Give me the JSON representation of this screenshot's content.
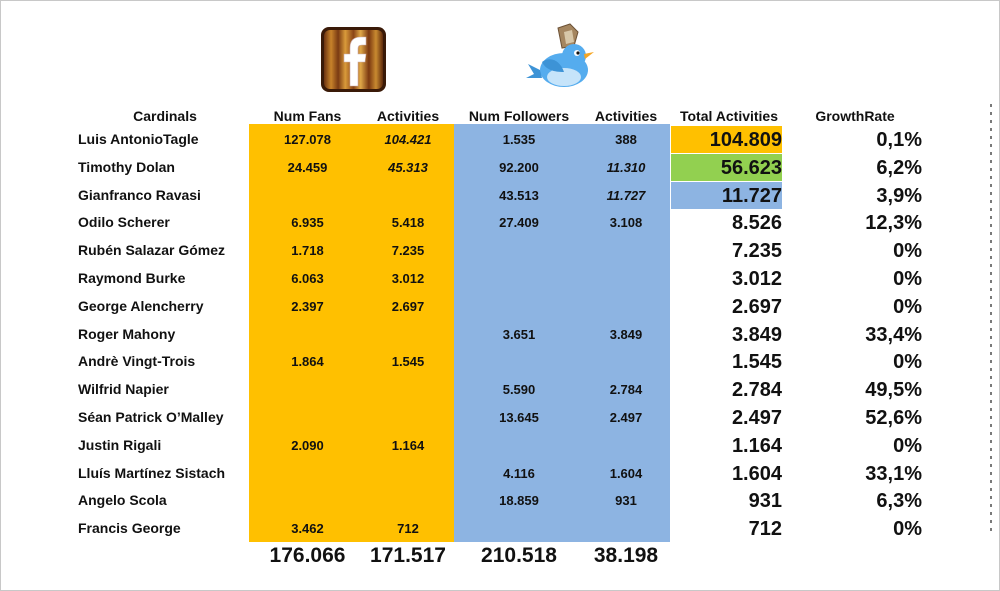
{
  "headers": {
    "cardinals": "Cardinals",
    "num_fans": "Num Fans",
    "fb_activities": "Activities",
    "num_followers": "Num Followers",
    "tw_activities": "Activities",
    "total": "Total Activities",
    "growth": "GrowthRate"
  },
  "colors": {
    "facebook_column": "#ffc000",
    "twitter_column": "#8db4e2",
    "top1": "#ffc000",
    "top2": "#92d050",
    "top3": "#8db4e2"
  },
  "icons": {
    "facebook": "facebook-logo-icon",
    "twitter": "twitter-bird-icon"
  },
  "rows": [
    {
      "name": "Luis AntonioTagle",
      "fans": "127.078",
      "fb_act": "104.421",
      "followers": "1.535",
      "tw_act": "388",
      "total": "104.809",
      "growth": "0,1%"
    },
    {
      "name": "Timothy Dolan",
      "fans": "24.459",
      "fb_act": "45.313",
      "followers": "92.200",
      "tw_act": "11.310",
      "total": "56.623",
      "growth": "6,2%"
    },
    {
      "name": "Gianfranco Ravasi",
      "fans": "",
      "fb_act": "",
      "followers": "43.513",
      "tw_act": "11.727",
      "total": "11.727",
      "growth": "3,9%"
    },
    {
      "name": "Odilo Scherer",
      "fans": "6.935",
      "fb_act": "5.418",
      "followers": "27.409",
      "tw_act": "3.108",
      "total": "8.526",
      "growth": "12,3%"
    },
    {
      "name": "Rubén Salazar Gómez",
      "fans": "1.718",
      "fb_act": "7.235",
      "followers": "",
      "tw_act": "",
      "total": "7.235",
      "growth": "0%"
    },
    {
      "name": "Raymond Burke",
      "fans": "6.063",
      "fb_act": "3.012",
      "followers": "",
      "tw_act": "",
      "total": "3.012",
      "growth": "0%"
    },
    {
      "name": "George Alencherry",
      "fans": "2.397",
      "fb_act": "2.697",
      "followers": "",
      "tw_act": "",
      "total": "2.697",
      "growth": "0%"
    },
    {
      "name": "Roger Mahony",
      "fans": "",
      "fb_act": "",
      "followers": "3.651",
      "tw_act": "3.849",
      "total": "3.849",
      "growth": "33,4%"
    },
    {
      "name": "Andrè Vingt-Trois",
      "fans": "1.864",
      "fb_act": "1.545",
      "followers": "",
      "tw_act": "",
      "total": "1.545",
      "growth": "0%"
    },
    {
      "name": "Wilfrid Napier",
      "fans": "",
      "fb_act": "",
      "followers": "5.590",
      "tw_act": "2.784",
      "total": "2.784",
      "growth": "49,5%"
    },
    {
      "name": "Séan Patrick O’Malley",
      "fans": "",
      "fb_act": "",
      "followers": "13.645",
      "tw_act": "2.497",
      "total": "2.497",
      "growth": "52,6%"
    },
    {
      "name": "Justin Rigali",
      "fans": "2.090",
      "fb_act": "1.164",
      "followers": "",
      "tw_act": "",
      "total": "1.164",
      "growth": "0%"
    },
    {
      "name": "Lluís Martínez Sistach",
      "fans": "",
      "fb_act": "",
      "followers": "4.116",
      "tw_act": "1.604",
      "total": "1.604",
      "growth": "33,1%"
    },
    {
      "name": "Angelo Scola",
      "fans": "",
      "fb_act": "",
      "followers": "18.859",
      "tw_act": "931",
      "total": "931",
      "growth": "6,3%"
    },
    {
      "name": "Francis George",
      "fans": "3.462",
      "fb_act": "712",
      "followers": "",
      "tw_act": "",
      "total": "712",
      "growth": "0%"
    }
  ],
  "totals": {
    "fans": "176.066",
    "fb_act": "171.517",
    "followers": "210.518",
    "tw_act": "38.198"
  }
}
